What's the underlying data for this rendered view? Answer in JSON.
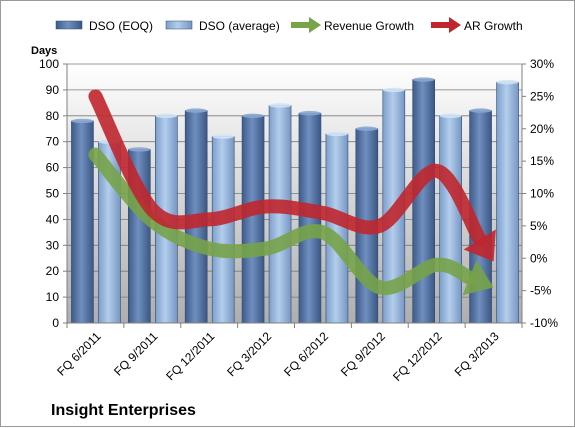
{
  "chart_data": {
    "type": "bar",
    "title": "Insight Enterprises",
    "ylabel": "Days",
    "ylim": [
      0,
      100
    ],
    "yticks": [
      0,
      10,
      20,
      30,
      40,
      50,
      60,
      70,
      80,
      90,
      100
    ],
    "y2lim": [
      -10,
      30
    ],
    "y2ticks": [
      "-10%",
      "-5%",
      "0%",
      "5%",
      "10%",
      "15%",
      "20%",
      "25%",
      "30%"
    ],
    "categories": [
      "FQ 6/2011",
      "FQ 9/2011",
      "FQ 12/2011",
      "FQ 3/2012",
      "FQ 6/2012",
      "FQ 9/2012",
      "FQ 12/2012",
      "FQ 3/2013"
    ],
    "series": [
      {
        "name": "DSO (EOQ)",
        "kind": "bar",
        "axis": "left",
        "color": "#4f6d9c",
        "values": [
          78,
          67,
          82,
          80,
          81,
          75,
          94,
          82
        ]
      },
      {
        "name": "DSO (average)",
        "kind": "bar",
        "axis": "left",
        "color": "#8fb2dc",
        "values": [
          70,
          80,
          72,
          84,
          73,
          90,
          80,
          93
        ]
      },
      {
        "name": "Revenue Growth",
        "kind": "arrow-line",
        "axis": "right",
        "unit": "%",
        "color": "#77a349",
        "values": [
          16,
          5.8,
          1.5,
          1.5,
          4,
          -4.5,
          -1,
          -4.5
        ]
      },
      {
        "name": "AR Growth",
        "kind": "arrow-line",
        "axis": "right",
        "unit": "%",
        "color": "#c0262d",
        "values": [
          25,
          7.5,
          6,
          8,
          7,
          5,
          13.5,
          -0.5
        ]
      }
    ],
    "legend_position": "top",
    "grid": true
  }
}
